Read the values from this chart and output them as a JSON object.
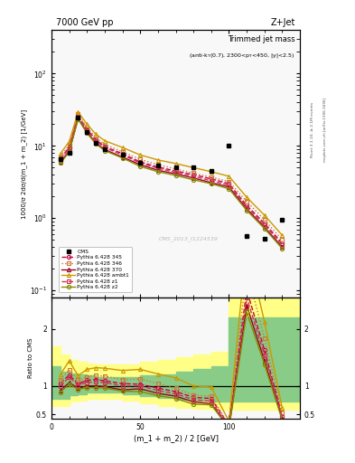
{
  "title_top": "7000 GeV pp",
  "title_right": "Z+Jet",
  "plot_title": "Trimmed jet mass",
  "plot_subtitle": "(anti-k_{T}(0.7), 2300<p_{T}<450, |y|<2.5)",
  "ylabel_main": "1000/σ 2dσ/d(m_1 + m_2) [1/GeV]",
  "ylabel_ratio": "Ratio to CMS",
  "xlabel": "(m_1 + m_2) / 2 [GeV]",
  "watermark": "CMS_2013_I1224539",
  "rivet_label": "Rivet 3.1.10, ≥ 2.1M events",
  "mcplots_label": "mcplots.cern.ch [arXiv:1306.3436]",
  "cms_x": [
    5,
    10,
    15,
    20,
    25,
    30,
    40,
    50,
    60,
    70,
    80,
    90,
    100,
    110,
    120,
    130
  ],
  "cms_y": [
    6.5,
    8.0,
    25.0,
    15.5,
    11.0,
    9.0,
    7.5,
    5.8,
    5.3,
    5.0,
    5.0,
    4.5,
    10.0,
    0.56,
    0.52,
    0.95
  ],
  "x_vals": [
    5,
    10,
    15,
    20,
    25,
    30,
    40,
    50,
    60,
    70,
    80,
    90,
    100,
    110,
    120,
    130
  ],
  "py345_y": [
    6.8,
    9.5,
    26.0,
    17.0,
    12.2,
    9.8,
    7.8,
    6.0,
    5.1,
    4.5,
    4.0,
    3.5,
    3.0,
    1.5,
    0.85,
    0.45
  ],
  "py346_y": [
    7.2,
    10.2,
    27.5,
    18.0,
    13.0,
    10.5,
    8.3,
    6.5,
    5.5,
    4.8,
    4.2,
    3.7,
    3.2,
    1.7,
    0.95,
    0.5
  ],
  "py370_y": [
    6.0,
    8.5,
    24.0,
    15.5,
    11.0,
    8.9,
    7.0,
    5.5,
    4.6,
    4.1,
    3.6,
    3.1,
    2.7,
    1.35,
    0.75,
    0.4
  ],
  "pyambt1_y": [
    7.8,
    11.5,
    29.5,
    20.0,
    14.5,
    11.8,
    9.5,
    7.5,
    6.4,
    5.7,
    5.0,
    4.4,
    3.8,
    1.95,
    1.1,
    0.58
  ],
  "pyz1_y": [
    6.5,
    9.2,
    25.5,
    16.5,
    11.8,
    9.5,
    7.5,
    5.8,
    4.9,
    4.3,
    3.8,
    3.3,
    2.85,
    1.43,
    0.8,
    0.43
  ],
  "pyz2_y": [
    5.8,
    8.2,
    23.5,
    15.0,
    10.7,
    8.6,
    6.8,
    5.2,
    4.4,
    3.9,
    3.4,
    3.0,
    2.55,
    1.28,
    0.72,
    0.38
  ],
  "ratio_py345": [
    1.05,
    1.19,
    1.04,
    1.1,
    1.11,
    1.09,
    1.04,
    1.03,
    0.96,
    0.9,
    0.8,
    0.78,
    0.3,
    2.68,
    1.63,
    0.47
  ],
  "ratio_py346": [
    1.11,
    1.28,
    1.1,
    1.16,
    1.18,
    1.17,
    1.11,
    1.12,
    1.04,
    0.96,
    0.84,
    0.82,
    0.32,
    3.04,
    1.83,
    0.53
  ],
  "ratio_py370": [
    0.92,
    1.06,
    0.96,
    1.0,
    1.0,
    0.99,
    0.93,
    0.95,
    0.87,
    0.82,
    0.72,
    0.69,
    0.27,
    2.41,
    1.44,
    0.42
  ],
  "ratio_pyambt1": [
    1.2,
    1.44,
    1.18,
    1.29,
    1.32,
    1.31,
    1.27,
    1.29,
    1.21,
    1.14,
    1.0,
    0.98,
    0.38,
    3.48,
    2.12,
    0.61
  ],
  "ratio_pyz1": [
    1.0,
    1.15,
    1.02,
    1.06,
    1.07,
    1.06,
    1.0,
    1.0,
    0.92,
    0.86,
    0.76,
    0.73,
    0.285,
    2.55,
    1.54,
    0.45
  ],
  "ratio_pyz2": [
    0.89,
    1.03,
    0.94,
    0.97,
    0.97,
    0.96,
    0.91,
    0.9,
    0.83,
    0.78,
    0.68,
    0.67,
    0.255,
    2.29,
    1.38,
    0.4
  ],
  "band_x": [
    0,
    5,
    10,
    15,
    20,
    25,
    30,
    40,
    50,
    60,
    70,
    80,
    90,
    100,
    110,
    120,
    130,
    140
  ],
  "band_yellow_lo": [
    0.65,
    0.65,
    0.72,
    0.75,
    0.78,
    0.78,
    0.78,
    0.75,
    0.7,
    0.65,
    0.62,
    0.6,
    0.58,
    0.58,
    0.58,
    0.58,
    0.58,
    0.58
  ],
  "band_yellow_hi": [
    1.7,
    1.55,
    1.45,
    1.42,
    1.4,
    1.38,
    1.38,
    1.38,
    1.42,
    1.45,
    1.5,
    1.55,
    1.6,
    2.55,
    2.55,
    2.55,
    2.55,
    2.55
  ],
  "band_green_lo": [
    0.78,
    0.78,
    0.84,
    0.86,
    0.88,
    0.88,
    0.88,
    0.86,
    0.82,
    0.79,
    0.76,
    0.74,
    0.72,
    0.72,
    0.72,
    0.72,
    0.72,
    0.72
  ],
  "band_green_hi": [
    1.35,
    1.25,
    1.22,
    1.2,
    1.18,
    1.16,
    1.16,
    1.16,
    1.18,
    1.2,
    1.25,
    1.3,
    1.35,
    2.2,
    2.2,
    2.2,
    2.2,
    2.2
  ],
  "color_py345": "#cc0044",
  "color_py346": "#cc7733",
  "color_py370": "#990022",
  "color_pyambt1": "#cc9900",
  "color_pyz1": "#cc3355",
  "color_pyz2": "#888800",
  "color_cms": "black",
  "xlim": [
    0,
    140
  ],
  "ylim_main": [
    0.08,
    400
  ],
  "ylim_ratio": [
    0.42,
    2.55
  ],
  "ratio_yticks": [
    0.5,
    1.0,
    2.0
  ]
}
